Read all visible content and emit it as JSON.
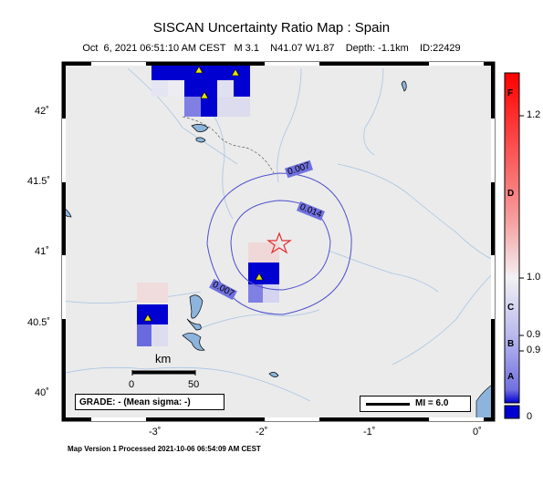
{
  "title": "SISCAN Uncertainty Ratio Map : Spain",
  "subtitle": "Oct  6, 2021 06:51:10 AM CEST   M 3.1    N41.07 W1.87    Depth: -1.1km    ID:22429",
  "footer": "Map Version 1 Processed 2021-10-06 06:54:09 AM CEST",
  "lat_ticks": [
    "42˚",
    "41.5˚",
    "41˚",
    "40.5˚",
    "40˚"
  ],
  "lon_ticks": [
    "-3˚",
    "-2˚",
    "-1˚",
    "0˚"
  ],
  "contours": [
    "0.007",
    "0.014",
    "0.007"
  ],
  "grade_box": "GRADE: - (Mean sigma: -)",
  "mi_box": "MI = 6.0",
  "scale_bar": {
    "unit": "km",
    "min": "0",
    "max": "50"
  },
  "colorbar": {
    "letters": [
      "F",
      "D",
      "C",
      "B",
      "A"
    ],
    "values": [
      "1.2",
      "1.0",
      "0.9",
      "0.9",
      "0"
    ]
  },
  "epicenter": {
    "lat": 41.07,
    "lon": -1.87
  },
  "colors": {
    "water": "#8cb4dc",
    "land": "#ebebeb",
    "contour": "#5050d0",
    "epicenter": "#e03030"
  }
}
